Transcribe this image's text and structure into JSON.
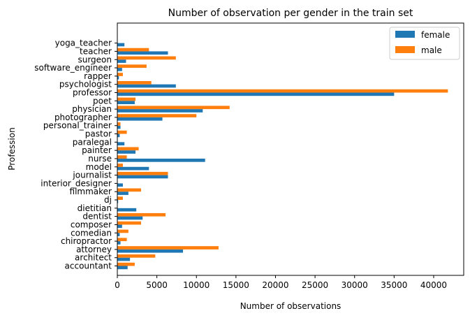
{
  "chart_data": {
    "type": "bar",
    "orientation": "horizontal",
    "title": "Number of observation per gender in the train set",
    "xlabel": "Number of observations",
    "ylabel": "Profession",
    "xlim": [
      0,
      43800
    ],
    "xticks": [
      0,
      5000,
      10000,
      15000,
      20000,
      25000,
      30000,
      35000,
      40000
    ],
    "legend_position": "top-right",
    "grid": false,
    "categories": [
      "accountant",
      "architect",
      "attorney",
      "chiropractor",
      "comedian",
      "composer",
      "dentist",
      "dietitian",
      "dj",
      "filmmaker",
      "interior_designer",
      "journalist",
      "model",
      "nurse",
      "painter",
      "paralegal",
      "pastor",
      "personal_trainer",
      "photographer",
      "physician",
      "poet",
      "professor",
      "psychologist",
      "rapper",
      "software_engineer",
      "surgeon",
      "teacher",
      "yoga_teacher"
    ],
    "series": [
      {
        "name": "female",
        "color": "#1f77b4",
        "values": [
          1300,
          1600,
          8300,
          400,
          300,
          600,
          3200,
          2400,
          100,
          1400,
          700,
          6400,
          4000,
          11100,
          2300,
          900,
          300,
          400,
          5700,
          10800,
          2200,
          35000,
          7400,
          200,
          600,
          1100,
          6400,
          900
        ]
      },
      {
        "name": "male",
        "color": "#ff7f0e",
        "values": [
          2200,
          4800,
          12800,
          1200,
          1400,
          3000,
          6100,
          0,
          700,
          3000,
          0,
          6400,
          700,
          1200,
          2700,
          0,
          1200,
          400,
          10000,
          14200,
          2300,
          41800,
          4300,
          700,
          3700,
          7400,
          4000,
          0
        ]
      }
    ]
  }
}
